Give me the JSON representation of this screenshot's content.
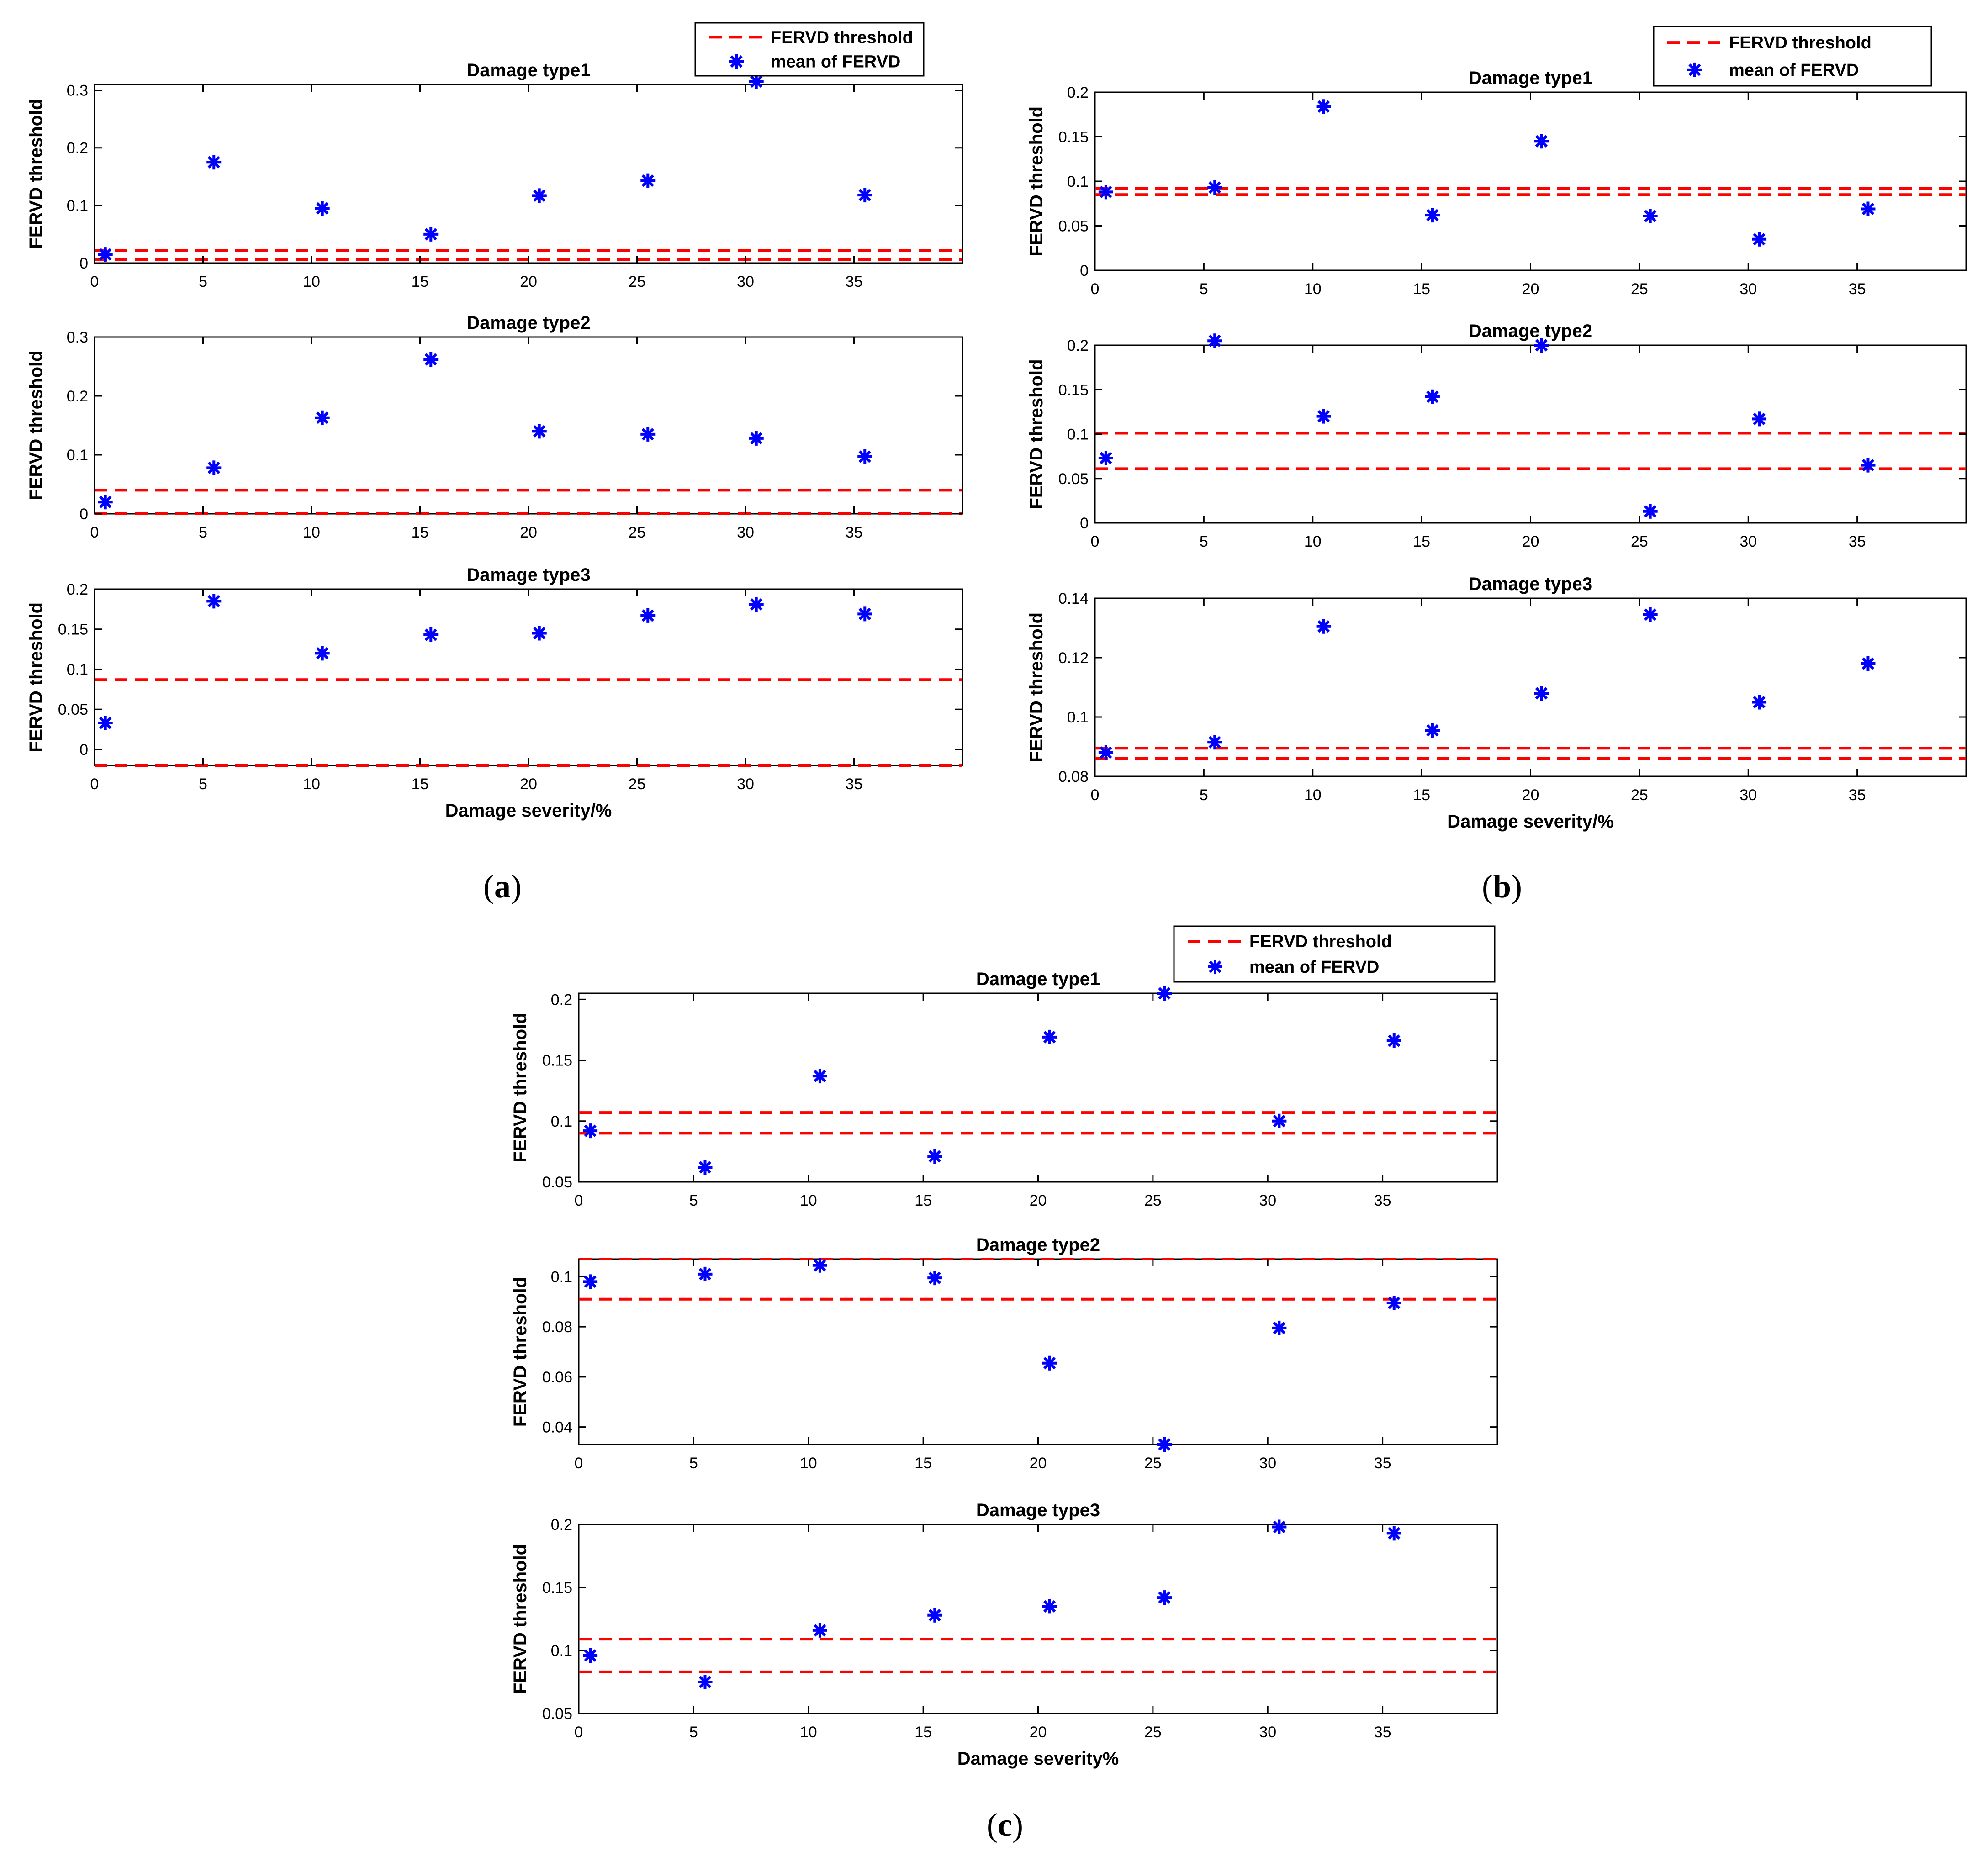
{
  "figure": {
    "panels": [
      {
        "label": "a",
        "legend": {
          "threshold_label": "FERVD threshold",
          "mean_label": "mean of FERVD"
        },
        "xlabel": "Damage severity/%"
      },
      {
        "label": "b",
        "legend": {
          "threshold_label": "FERVD threshold",
          "mean_label": "mean of FERVD"
        },
        "xlabel": "Damage severity/%"
      },
      {
        "label": "c",
        "legend": {
          "threshold_label": "FERVD threshold",
          "mean_label": "mean of FERVD"
        },
        "xlabel": "Damage severity%"
      }
    ]
  },
  "colors": {
    "threshold": "#ff0000",
    "mean": "#0000ff",
    "axis": "#000000"
  },
  "chart_data": [
    {
      "panel": "a",
      "type": "scatter",
      "title": "Damage type1",
      "xlabel": "",
      "ylabel": "FERVD threshold",
      "xlim": [
        0,
        40
      ],
      "ylim": [
        0,
        0.31
      ],
      "xticks": [
        "0",
        "5",
        "10",
        "15",
        "20",
        "25",
        "30",
        "35"
      ],
      "yticks": [
        "0",
        "0.1",
        "0.2",
        "0.3"
      ],
      "x": [
        0.5,
        5.5,
        10.5,
        15.5,
        20.5,
        25.5,
        30.5,
        35.5
      ],
      "y": [
        0.015,
        0.175,
        0.095,
        0.05,
        0.117,
        0.143,
        0.315,
        0.118
      ],
      "thresholds": [
        0.022,
        0.006
      ]
    },
    {
      "panel": "a",
      "type": "scatter",
      "title": "Damage type2",
      "xlabel": "",
      "ylabel": "FERVD threshold",
      "xlim": [
        0,
        40
      ],
      "ylim": [
        0,
        0.3
      ],
      "xticks": [
        "0",
        "5",
        "10",
        "15",
        "20",
        "25",
        "30",
        "35"
      ],
      "yticks": [
        "0",
        "0.1",
        "0.2",
        "0.3"
      ],
      "x": [
        0.5,
        5.5,
        10.5,
        15.5,
        20.5,
        25.5,
        30.5,
        35.5
      ],
      "y": [
        0.02,
        0.078,
        0.163,
        0.262,
        0.14,
        0.135,
        0.128,
        0.097
      ],
      "thresholds": [
        0.04,
        0.0
      ]
    },
    {
      "panel": "a",
      "type": "scatter",
      "title": "Damage type3",
      "xlabel": "Damage severity/%",
      "ylabel": "FERVD threshold",
      "xlim": [
        0,
        40
      ],
      "ylim": [
        -0.02,
        0.2
      ],
      "xticks": [
        "0",
        "5",
        "10",
        "15",
        "20",
        "25",
        "30",
        "35"
      ],
      "yticks": [
        "0",
        "0.05",
        "0.1",
        "0.15",
        "0.2"
      ],
      "x": [
        0.5,
        5.5,
        10.5,
        15.5,
        20.5,
        25.5,
        30.5,
        35.5
      ],
      "y": [
        0.033,
        0.185,
        0.12,
        0.143,
        0.145,
        0.167,
        0.181,
        0.169
      ],
      "thresholds": [
        0.087,
        -0.02
      ]
    },
    {
      "panel": "b",
      "type": "scatter",
      "title": "Damage type1",
      "xlabel": "",
      "ylabel": "FERVD threshold",
      "xlim": [
        0,
        40
      ],
      "ylim": [
        0,
        0.2
      ],
      "xticks": [
        "0",
        "5",
        "10",
        "15",
        "20",
        "25",
        "30",
        "35"
      ],
      "yticks": [
        "0",
        "0.05",
        "0.1",
        "0.15",
        "0.2"
      ],
      "x": [
        0.5,
        5.5,
        10.5,
        15.5,
        20.5,
        25.5,
        30.5,
        35.5
      ],
      "y": [
        0.088,
        0.093,
        0.184,
        0.062,
        0.145,
        0.061,
        0.035,
        0.069
      ],
      "thresholds": [
        0.092,
        0.085
      ]
    },
    {
      "panel": "b",
      "type": "scatter",
      "title": "Damage type2",
      "xlabel": "",
      "ylabel": "FERVD threshold",
      "xlim": [
        0,
        40
      ],
      "ylim": [
        0,
        0.2
      ],
      "xticks": [
        "0",
        "5",
        "10",
        "15",
        "20",
        "25",
        "30",
        "35"
      ],
      "yticks": [
        "0",
        "0.05",
        "0.1",
        "0.15",
        "0.2"
      ],
      "x": [
        0.5,
        5.5,
        10.5,
        15.5,
        20.5,
        25.5,
        30.5,
        35.5
      ],
      "y": [
        0.073,
        0.205,
        0.12,
        0.142,
        0.2,
        0.013,
        0.117,
        0.065
      ],
      "thresholds": [
        0.101,
        0.061
      ]
    },
    {
      "panel": "b",
      "type": "scatter",
      "title": "Damage type3",
      "xlabel": "Damage severity/%",
      "ylabel": "FERVD threshold",
      "xlim": [
        0,
        40
      ],
      "ylim": [
        0.08,
        0.14
      ],
      "xticks": [
        "0",
        "5",
        "10",
        "15",
        "20",
        "25",
        "30",
        "35"
      ],
      "yticks": [
        "0.08",
        "0.1",
        "0.12",
        "0.14"
      ],
      "x": [
        0.5,
        5.5,
        10.5,
        15.5,
        20.5,
        25.5,
        30.5,
        35.5
      ],
      "y": [
        0.088,
        0.0915,
        0.1305,
        0.0955,
        0.108,
        0.1345,
        0.105,
        0.118
      ],
      "thresholds": [
        0.0895,
        0.086
      ]
    },
    {
      "panel": "c",
      "type": "scatter",
      "title": "Damage type1",
      "xlabel": "",
      "ylabel": "FERVD threshold",
      "xlim": [
        0,
        40
      ],
      "ylim": [
        0.05,
        0.205
      ],
      "xticks": [
        "0",
        "5",
        "10",
        "15",
        "20",
        "25",
        "30",
        "35"
      ],
      "yticks": [
        "0.05",
        "0.1",
        "0.15",
        "0.2"
      ],
      "x": [
        0.5,
        5.5,
        10.5,
        15.5,
        20.5,
        25.5,
        30.5,
        35.5
      ],
      "y": [
        0.092,
        0.062,
        0.137,
        0.071,
        0.169,
        0.205,
        0.1,
        0.166
      ],
      "thresholds": [
        0.107,
        0.09
      ]
    },
    {
      "panel": "c",
      "type": "scatter",
      "title": "Damage type2",
      "xlabel": "",
      "ylabel": "FERVD threshold",
      "xlim": [
        0,
        40
      ],
      "ylim": [
        0.033,
        0.107
      ],
      "xticks": [
        "0",
        "5",
        "10",
        "15",
        "20",
        "25",
        "30",
        "35"
      ],
      "yticks": [
        "0.04",
        "0.06",
        "0.08",
        "0.1"
      ],
      "x": [
        0.5,
        5.5,
        10.5,
        15.5,
        20.5,
        25.5,
        30.5,
        35.5
      ],
      "y": [
        0.098,
        0.101,
        0.1045,
        0.0995,
        0.0655,
        0.033,
        0.0795,
        0.0895
      ],
      "thresholds": [
        0.107,
        0.091
      ]
    },
    {
      "panel": "c",
      "type": "scatter",
      "title": "Damage type3",
      "xlabel": "Damage severity%",
      "ylabel": "FERVD threshold",
      "xlim": [
        0,
        40
      ],
      "ylim": [
        0.05,
        0.2
      ],
      "xticks": [
        "0",
        "5",
        "10",
        "15",
        "20",
        "25",
        "30",
        "35"
      ],
      "yticks": [
        "0.05",
        "0.1",
        "0.15",
        "0.2"
      ],
      "x": [
        0.5,
        5.5,
        10.5,
        15.5,
        20.5,
        25.5,
        30.5,
        35.5
      ],
      "y": [
        0.096,
        0.075,
        0.116,
        0.128,
        0.135,
        0.142,
        0.198,
        0.193
      ],
      "thresholds": [
        0.109,
        0.083
      ]
    }
  ]
}
